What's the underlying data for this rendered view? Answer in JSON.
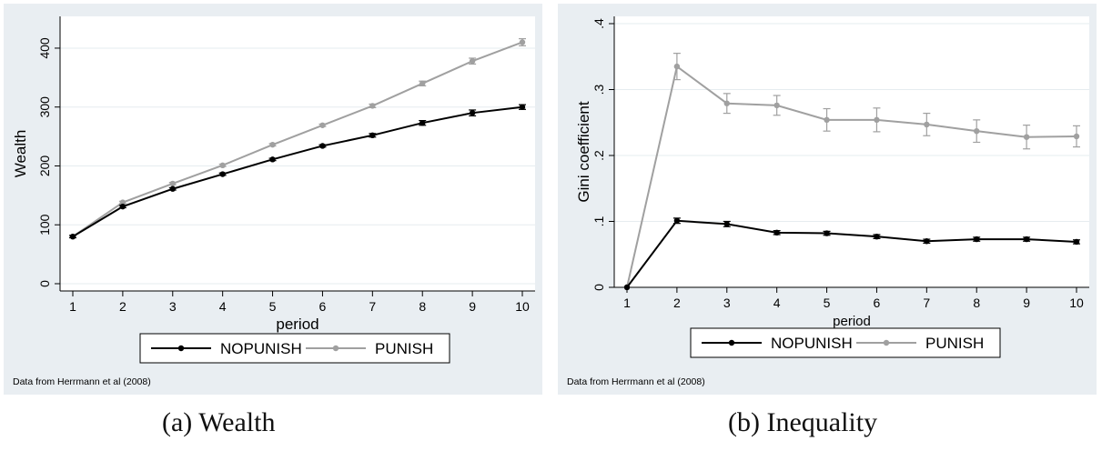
{
  "chart_data": [
    {
      "type": "line",
      "caption": "(a)  Wealth",
      "xlabel": "period",
      "ylabel": "Wealth",
      "x": [
        1,
        2,
        3,
        4,
        5,
        6,
        7,
        8,
        9,
        10
      ],
      "xlim": [
        1,
        10
      ],
      "ylim": [
        0,
        420
      ],
      "yticks": [
        0,
        100,
        200,
        300,
        400
      ],
      "ytick_labels": [
        "0",
        "100",
        "200",
        "300",
        "400"
      ],
      "grid": true,
      "legend": "bottom",
      "note": "Data from Herrmann et al (2008)",
      "series": [
        {
          "name": "NOPUNISH",
          "color": "#000000",
          "values": [
            80,
            131,
            161,
            186,
            211,
            234,
            252,
            273,
            290,
            300
          ],
          "errors": [
            2,
            2,
            2,
            2,
            2,
            2,
            3,
            4,
            5,
            4
          ]
        },
        {
          "name": "PUNISH",
          "color": "#a0a0a0",
          "values": [
            80,
            138,
            170,
            201,
            236,
            269,
            302,
            340,
            378,
            410
          ],
          "errors": [
            2,
            2,
            2,
            2,
            2,
            2,
            3,
            4,
            5,
            6
          ]
        }
      ]
    },
    {
      "type": "line",
      "caption": "(b)  Inequality",
      "xlabel": "period",
      "ylabel": "Gini coefficient",
      "x": [
        1,
        2,
        3,
        4,
        5,
        6,
        7,
        8,
        9,
        10
      ],
      "xlim": [
        1,
        10
      ],
      "ylim": [
        0,
        0.4
      ],
      "yticks": [
        0,
        0.1,
        0.2,
        0.3,
        0.4
      ],
      "ytick_labels": [
        "0",
        ".1",
        ".2",
        ".3",
        ".4"
      ],
      "grid": true,
      "legend": "bottom",
      "note": "Data from Herrmann et al (2008)",
      "series": [
        {
          "name": "NOPUNISH",
          "color": "#000000",
          "values": [
            0.0,
            0.101,
            0.096,
            0.083,
            0.082,
            0.077,
            0.07,
            0.073,
            0.073,
            0.069
          ],
          "errors": [
            0.0,
            0.004,
            0.004,
            0.003,
            0.003,
            0.003,
            0.003,
            0.003,
            0.003,
            0.003
          ]
        },
        {
          "name": "PUNISH",
          "color": "#a0a0a0",
          "values": [
            0.0,
            0.335,
            0.279,
            0.276,
            0.254,
            0.254,
            0.247,
            0.237,
            0.228,
            0.229
          ],
          "errors": [
            0.0,
            0.02,
            0.015,
            0.015,
            0.017,
            0.018,
            0.017,
            0.017,
            0.018,
            0.016
          ]
        }
      ]
    }
  ]
}
